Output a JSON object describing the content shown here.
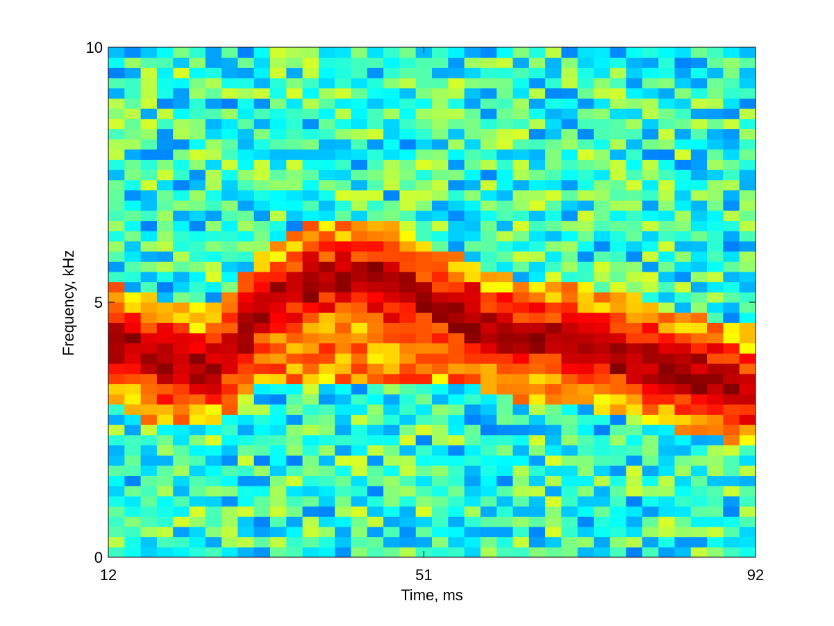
{
  "chart_data": {
    "type": "heatmap",
    "title": "",
    "xlabel": "Time, ms",
    "ylabel": "Frequency, kHz",
    "xlim": [
      12,
      92
    ],
    "ylim": [
      0,
      10
    ],
    "xticks": [
      12,
      51,
      92
    ],
    "yticks": [
      0,
      5,
      10
    ],
    "grid": false,
    "colormap": "jet",
    "color_range": [
      0,
      1
    ],
    "grid_size": {
      "time_bins": 40,
      "freq_bins": 50
    },
    "ridge": {
      "description_units": "time ms / frequency kHz",
      "time": [
        12,
        15,
        18,
        21,
        24,
        27,
        30,
        33,
        36,
        39,
        42,
        45,
        48,
        51,
        54,
        57,
        60,
        63,
        66,
        69,
        72,
        75,
        78,
        81,
        84,
        87,
        90,
        92
      ],
      "frequency": [
        4.3,
        4.1,
        3.8,
        3.8,
        3.7,
        4.0,
        4.6,
        5.1,
        5.4,
        5.5,
        5.5,
        5.5,
        5.4,
        5.1,
        4.8,
        4.6,
        4.4,
        4.3,
        4.3,
        4.2,
        4.1,
        4.0,
        3.9,
        3.7,
        3.6,
        3.5,
        3.4,
        3.3
      ]
    }
  }
}
